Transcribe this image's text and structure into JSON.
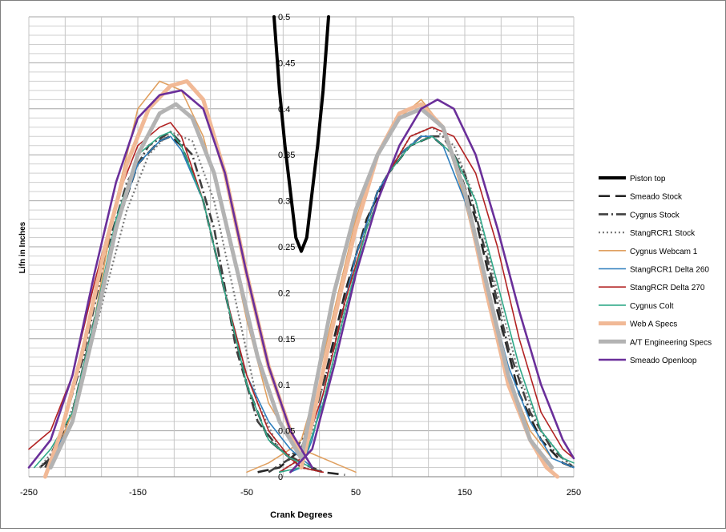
{
  "chart_data": {
    "type": "line",
    "xlabel": "Crank Degrees",
    "ylabel": "Lifn in  Inches",
    "xlim": [
      -250,
      250
    ],
    "ylim": [
      0,
      0.5
    ],
    "x_ticks": [
      "-250",
      "-150",
      "-50",
      "50",
      "150",
      "250"
    ],
    "y_ticks": [
      "0",
      "0.05",
      "0.1",
      "0.15",
      "0.2",
      "0.25",
      "0.3",
      "0.35",
      "0.4",
      "0.45",
      "0.5"
    ],
    "grid": true,
    "legend_position": "right",
    "series": [
      {
        "name": "Piston top",
        "color": "#000000",
        "style": "solid",
        "width": 4,
        "x": [
          -25,
          -20,
          -15,
          -10,
          -5,
          0,
          5,
          10,
          15,
          20,
          25
        ],
        "y": [
          0.5,
          0.42,
          0.36,
          0.31,
          0.26,
          0.245,
          0.26,
          0.31,
          0.36,
          0.42,
          0.5
        ]
      },
      {
        "name": "Smeado Stock",
        "color": "#262626",
        "style": "longdash",
        "width": 2.6,
        "ex": {
          "x": [
            -240,
            -230,
            -210,
            -190,
            -170,
            -150,
            -130,
            -120,
            -110,
            -90,
            -70,
            -50,
            -30,
            -10,
            0,
            10,
            20,
            40
          ],
          "y": [
            0.01,
            0.02,
            0.07,
            0.17,
            0.27,
            0.34,
            0.365,
            0.37,
            0.36,
            0.3,
            0.2,
            0.1,
            0.04,
            0.02,
            0.01,
            0.008,
            0.005,
            0.002
          ]
        },
        "in": {
          "x": [
            -40,
            -20,
            0,
            20,
            40,
            60,
            80,
            100,
            120,
            140,
            160,
            180,
            200,
            220,
            240,
            250
          ],
          "y": [
            0.005,
            0.01,
            0.03,
            0.1,
            0.2,
            0.28,
            0.33,
            0.36,
            0.37,
            0.35,
            0.28,
            0.18,
            0.09,
            0.04,
            0.015,
            0.01
          ]
        }
      },
      {
        "name": "Cygnus Stock",
        "color": "#404040",
        "style": "dashdot",
        "width": 2.6,
        "ex": {
          "x": [
            -235,
            -220,
            -200,
            -180,
            -160,
            -140,
            -120,
            -100,
            -80,
            -60,
            -40,
            -20,
            0,
            20
          ],
          "y": [
            0.01,
            0.05,
            0.13,
            0.24,
            0.32,
            0.36,
            0.375,
            0.35,
            0.27,
            0.14,
            0.06,
            0.03,
            0.015,
            0.005
          ]
        },
        "in": {
          "x": [
            -30,
            -10,
            10,
            30,
            50,
            70,
            90,
            110,
            130,
            150,
            170,
            190,
            210,
            230,
            250
          ],
          "y": [
            0.005,
            0.02,
            0.06,
            0.14,
            0.24,
            0.31,
            0.35,
            0.37,
            0.37,
            0.33,
            0.24,
            0.14,
            0.07,
            0.03,
            0.01
          ]
        }
      },
      {
        "name": "StangRCR1 Stock",
        "color": "#7a7a7a",
        "style": "dotted",
        "width": 2.2,
        "ex": {
          "x": [
            -240,
            -220,
            -200,
            -180,
            -160,
            -140,
            -120,
            -100,
            -80,
            -60,
            -40,
            -20,
            0,
            20
          ],
          "y": [
            0.01,
            0.04,
            0.11,
            0.2,
            0.29,
            0.35,
            0.375,
            0.365,
            0.3,
            0.19,
            0.08,
            0.03,
            0.01,
            0.005
          ]
        },
        "in": {
          "x": [
            -20,
            0,
            20,
            40,
            60,
            80,
            100,
            120,
            140,
            160,
            180,
            200,
            220,
            240,
            250
          ],
          "y": [
            0.005,
            0.02,
            0.08,
            0.18,
            0.27,
            0.33,
            0.37,
            0.38,
            0.36,
            0.3,
            0.2,
            0.11,
            0.05,
            0.02,
            0.01
          ]
        }
      },
      {
        "name": "Cygnus Webcam 1",
        "color": "#e0a060",
        "style": "solid",
        "width": 1.6,
        "ex": {
          "x": [
            -230,
            -210,
            -190,
            -170,
            -150,
            -130,
            -110,
            -90,
            -70,
            -50,
            -30,
            -10,
            0,
            10,
            30,
            50
          ],
          "y": [
            0.01,
            0.07,
            0.17,
            0.3,
            0.4,
            0.43,
            0.42,
            0.37,
            0.28,
            0.17,
            0.08,
            0.04,
            0.03,
            0.025,
            0.015,
            0.005
          ]
        },
        "in": {
          "x": [
            -50,
            -30,
            -10,
            0,
            10,
            30,
            50,
            70,
            90,
            110,
            130,
            150,
            170,
            190,
            210,
            230
          ],
          "y": [
            0.005,
            0.015,
            0.03,
            0.04,
            0.08,
            0.18,
            0.28,
            0.35,
            0.39,
            0.41,
            0.38,
            0.3,
            0.2,
            0.11,
            0.05,
            0.02
          ]
        }
      },
      {
        "name": "StangRCR1 Delta 260",
        "color": "#2e7ebd",
        "style": "solid",
        "width": 1.6,
        "ex": {
          "x": [
            -230,
            -210,
            -190,
            -170,
            -150,
            -130,
            -120,
            -110,
            -90,
            -70,
            -50,
            -30,
            -10,
            0,
            10
          ],
          "y": [
            0.02,
            0.06,
            0.16,
            0.27,
            0.34,
            0.365,
            0.37,
            0.355,
            0.3,
            0.2,
            0.11,
            0.06,
            0.03,
            0.02,
            0.01
          ]
        },
        "in": {
          "x": [
            -10,
            0,
            10,
            30,
            50,
            70,
            90,
            110,
            120,
            130,
            150,
            170,
            190,
            210,
            230,
            250
          ],
          "y": [
            0.005,
            0.01,
            0.04,
            0.14,
            0.24,
            0.31,
            0.35,
            0.37,
            0.37,
            0.36,
            0.3,
            0.21,
            0.12,
            0.06,
            0.02,
            0.01
          ]
        }
      },
      {
        "name": "StangRCR Delta 270",
        "color": "#b22222",
        "style": "solid",
        "width": 1.6,
        "ex": {
          "x": [
            -250,
            -230,
            -210,
            -190,
            -170,
            -150,
            -130,
            -120,
            -110,
            -90,
            -70,
            -50,
            -30,
            -10,
            0,
            20
          ],
          "y": [
            0.03,
            0.05,
            0.11,
            0.21,
            0.3,
            0.36,
            0.38,
            0.385,
            0.37,
            0.3,
            0.2,
            0.11,
            0.05,
            0.02,
            0.01,
            0.005
          ]
        },
        "in": {
          "x": [
            -20,
            0,
            20,
            40,
            60,
            80,
            100,
            120,
            140,
            160,
            180,
            200,
            220,
            240,
            250
          ],
          "y": [
            0.005,
            0.02,
            0.09,
            0.19,
            0.27,
            0.33,
            0.37,
            0.38,
            0.37,
            0.33,
            0.25,
            0.15,
            0.07,
            0.03,
            0.02
          ]
        }
      },
      {
        "name": "Cygnus Colt",
        "color": "#2ea887",
        "style": "solid",
        "width": 1.6,
        "ex": {
          "x": [
            -245,
            -230,
            -210,
            -190,
            -170,
            -150,
            -130,
            -120,
            -110,
            -90,
            -70,
            -50,
            -30,
            -10,
            10
          ],
          "y": [
            0.01,
            0.03,
            0.07,
            0.17,
            0.28,
            0.35,
            0.37,
            0.375,
            0.36,
            0.3,
            0.2,
            0.1,
            0.04,
            0.02,
            0.01
          ]
        },
        "in": {
          "x": [
            -20,
            0,
            20,
            40,
            60,
            80,
            100,
            120,
            140,
            160,
            180,
            200,
            220,
            240,
            250
          ],
          "y": [
            0.005,
            0.01,
            0.08,
            0.18,
            0.27,
            0.33,
            0.36,
            0.37,
            0.35,
            0.3,
            0.21,
            0.12,
            0.05,
            0.02,
            0.015
          ]
        }
      },
      {
        "name": "Web A Specs",
        "color": "#f1b996",
        "style": "solid",
        "width": 5,
        "ex": {
          "x": [
            -235,
            -220,
            -200,
            -180,
            -160,
            -140,
            -120,
            -105,
            -90,
            -70,
            -50,
            -30,
            -10,
            0
          ],
          "y": [
            0.0,
            0.05,
            0.14,
            0.25,
            0.34,
            0.4,
            0.425,
            0.43,
            0.41,
            0.33,
            0.22,
            0.12,
            0.05,
            0.02
          ]
        },
        "in": {
          "x": [
            0,
            10,
            30,
            50,
            70,
            90,
            110,
            130,
            150,
            170,
            190,
            210,
            225,
            235
          ],
          "y": [
            0.01,
            0.06,
            0.17,
            0.27,
            0.35,
            0.395,
            0.405,
            0.38,
            0.31,
            0.2,
            0.1,
            0.04,
            0.01,
            0.0
          ]
        }
      },
      {
        "name": "A/T Engineering Specs",
        "color": "#b3b3b3",
        "style": "solid",
        "width": 5,
        "ex": {
          "x": [
            -230,
            -210,
            -190,
            -170,
            -150,
            -130,
            -115,
            -100,
            -80,
            -60,
            -40,
            -20,
            0
          ],
          "y": [
            0.01,
            0.06,
            0.16,
            0.27,
            0.35,
            0.395,
            0.405,
            0.39,
            0.33,
            0.23,
            0.13,
            0.06,
            0.02
          ]
        },
        "in": {
          "x": [
            0,
            10,
            30,
            50,
            70,
            90,
            110,
            130,
            150,
            170,
            190,
            210,
            230
          ],
          "y": [
            0.02,
            0.08,
            0.2,
            0.29,
            0.35,
            0.39,
            0.4,
            0.38,
            0.31,
            0.21,
            0.11,
            0.04,
            0.01
          ]
        }
      },
      {
        "name": "Smeado Openloop",
        "color": "#6a2f9a",
        "style": "solid",
        "width": 2.6,
        "ex": {
          "x": [
            -250,
            -230,
            -210,
            -190,
            -170,
            -150,
            -130,
            -110,
            -90,
            -70,
            -50,
            -30,
            -10,
            0,
            10
          ],
          "y": [
            0.01,
            0.04,
            0.11,
            0.22,
            0.32,
            0.39,
            0.415,
            0.42,
            0.4,
            0.33,
            0.22,
            0.12,
            0.05,
            0.03,
            0.01
          ]
        },
        "in": {
          "x": [
            -10,
            10,
            30,
            50,
            70,
            90,
            110,
            125,
            140,
            160,
            180,
            200,
            220,
            240,
            250
          ],
          "y": [
            0.005,
            0.03,
            0.12,
            0.22,
            0.3,
            0.36,
            0.4,
            0.41,
            0.4,
            0.35,
            0.27,
            0.18,
            0.1,
            0.04,
            0.02
          ]
        }
      }
    ]
  }
}
